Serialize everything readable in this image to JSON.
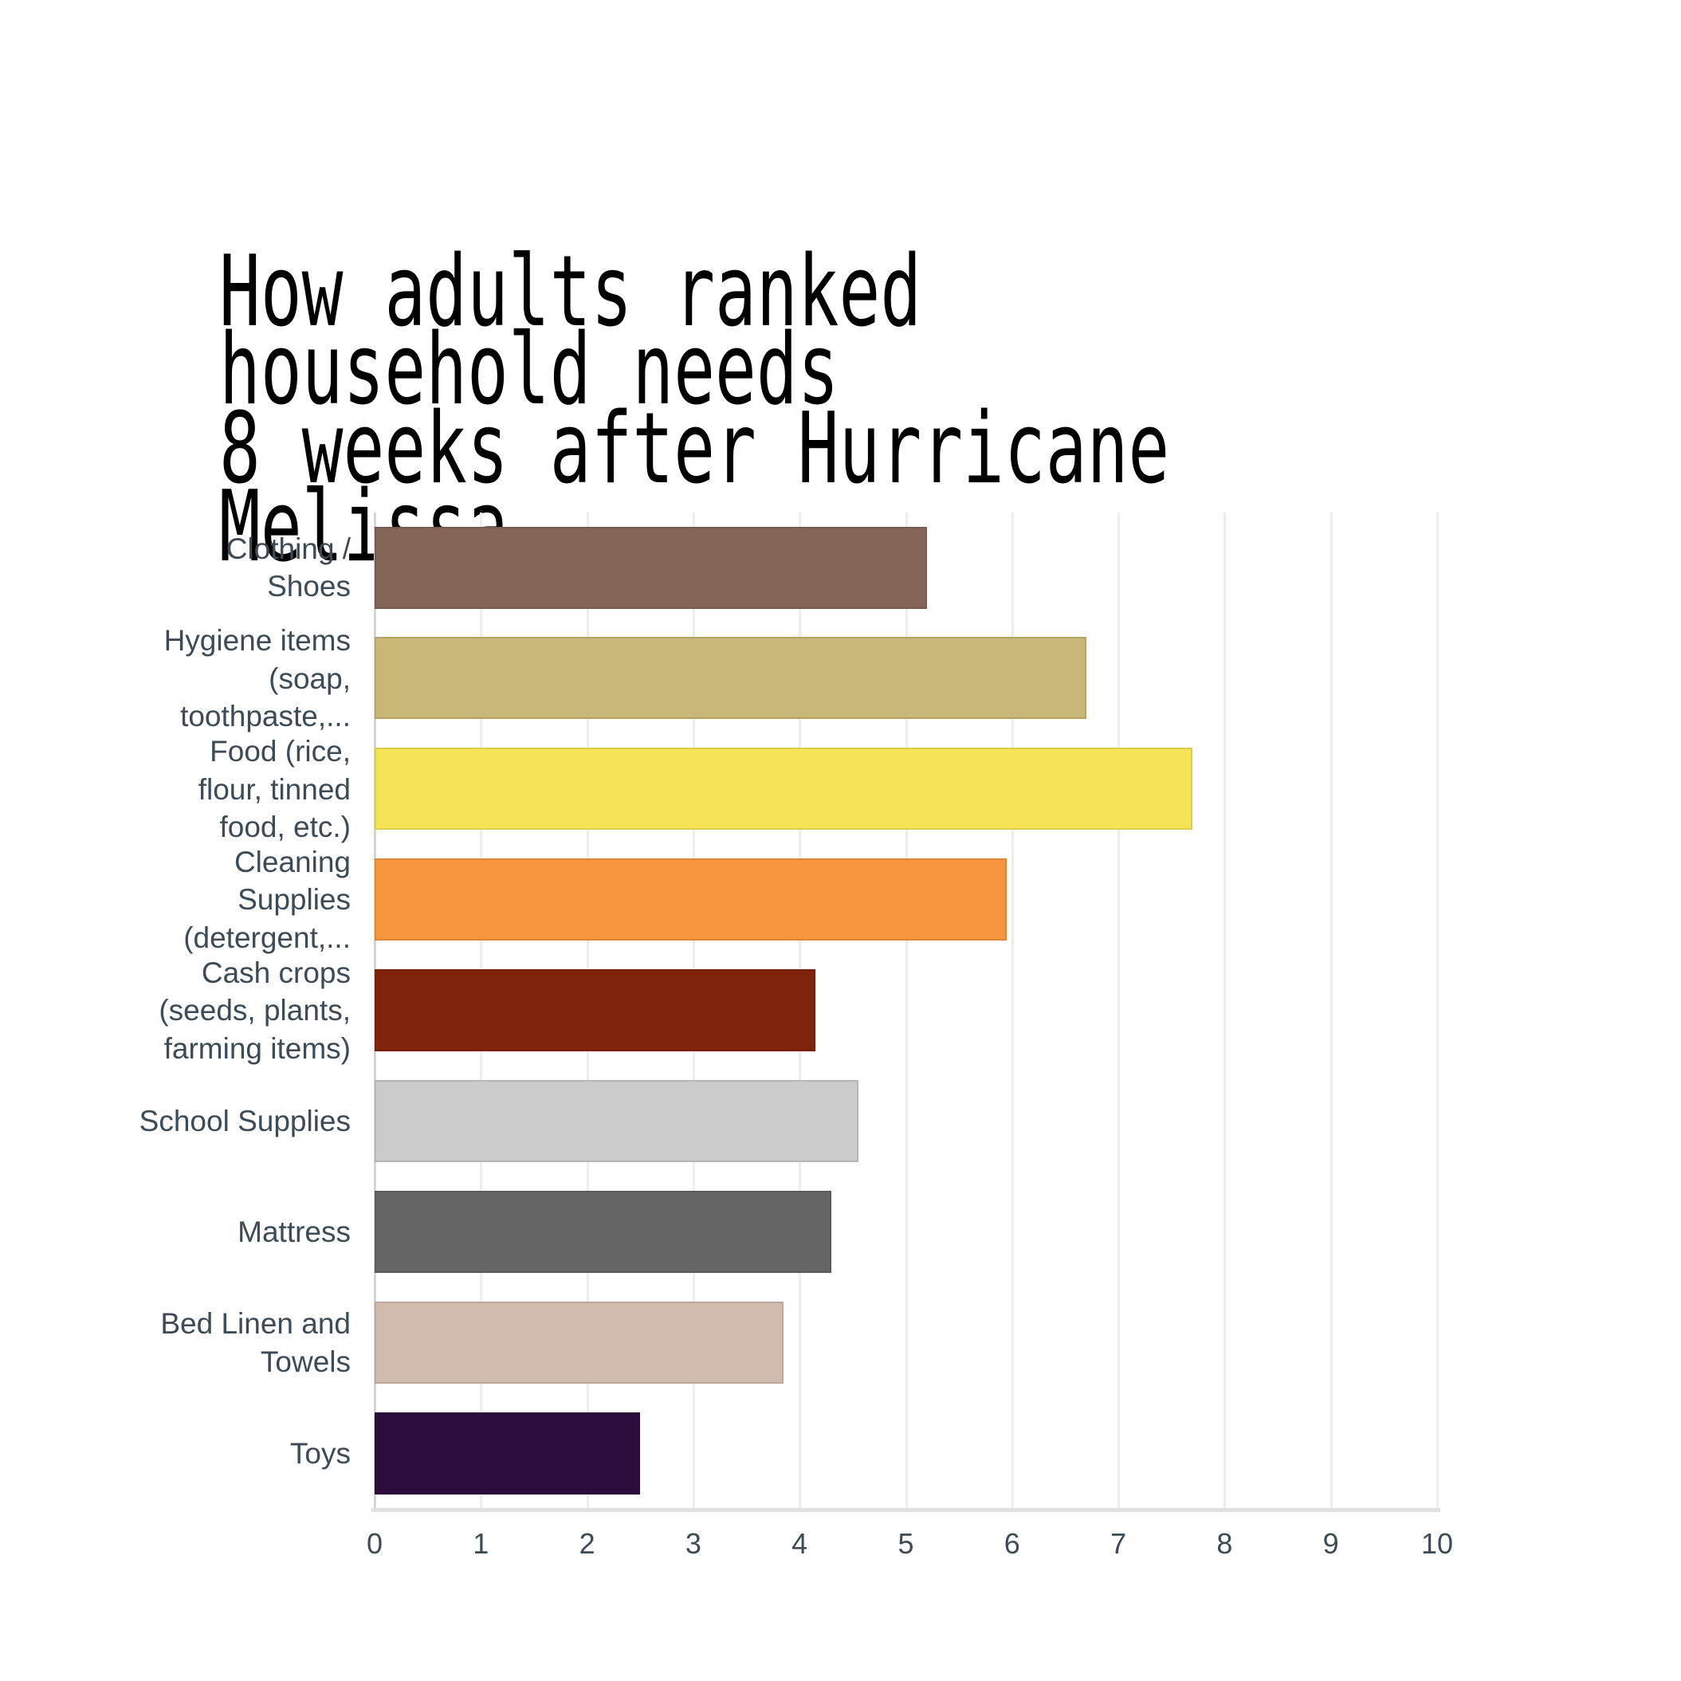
{
  "chart_data": {
    "type": "bar",
    "orientation": "horizontal",
    "title": "How adults ranked household needs\n8 weeks after Hurricane Melissa",
    "xlabel": "",
    "ylabel": "",
    "xlim": [
      0,
      10
    ],
    "x_ticks": [
      0,
      1,
      2,
      3,
      4,
      5,
      6,
      7,
      8,
      9,
      10
    ],
    "grid": true,
    "legend": "none",
    "categories": [
      "Clothing / Shoes",
      "Hygiene items (soap, toothpaste,...",
      "Food (rice, flour, tinned food, etc.)",
      "Cleaning Supplies (detergent,...",
      "Cash crops (seeds, plants, farming items)",
      "School Supplies",
      "Mattress",
      "Bed Linen and Towels",
      "Toys"
    ],
    "values": [
      5.2,
      6.7,
      7.7,
      5.95,
      4.15,
      4.55,
      4.3,
      3.85,
      2.5
    ],
    "rows": [
      {
        "label": "Clothing /\nShoes",
        "value": 5.2,
        "color": "#856558"
      },
      {
        "label": "Hygiene items\n(soap,\ntoothpaste,...",
        "value": 6.7,
        "color": "#C9B777"
      },
      {
        "label": "Food (rice,\nflour, tinned\nfood, etc.)",
        "value": 7.7,
        "color": "#F6E457"
      },
      {
        "label": "Cleaning\nSupplies\n(detergent,...",
        "value": 5.95,
        "color": "#F8963E"
      },
      {
        "label": "Cash crops\n(seeds, plants,\nfarming items)",
        "value": 4.15,
        "color": "#80230C"
      },
      {
        "label": "School Supplies",
        "value": 4.55,
        "color": "#CBCBCB"
      },
      {
        "label": "Mattress",
        "value": 4.3,
        "color": "#656565"
      },
      {
        "label": "Bed Linen and\nTowels",
        "value": 3.85,
        "color": "#D1BAAE"
      },
      {
        "label": "Toys",
        "value": 2.5,
        "color": "#2C0C3C"
      }
    ],
    "layout_colors": {
      "background": "#ffffff",
      "gridline": "#ededed",
      "axis_line": "#d5d5d5",
      "bottom_axis_line": "#e0e0e0",
      "tick_label": "#3d4b57",
      "category_label": "#3d4b57",
      "title": "#000000"
    }
  }
}
